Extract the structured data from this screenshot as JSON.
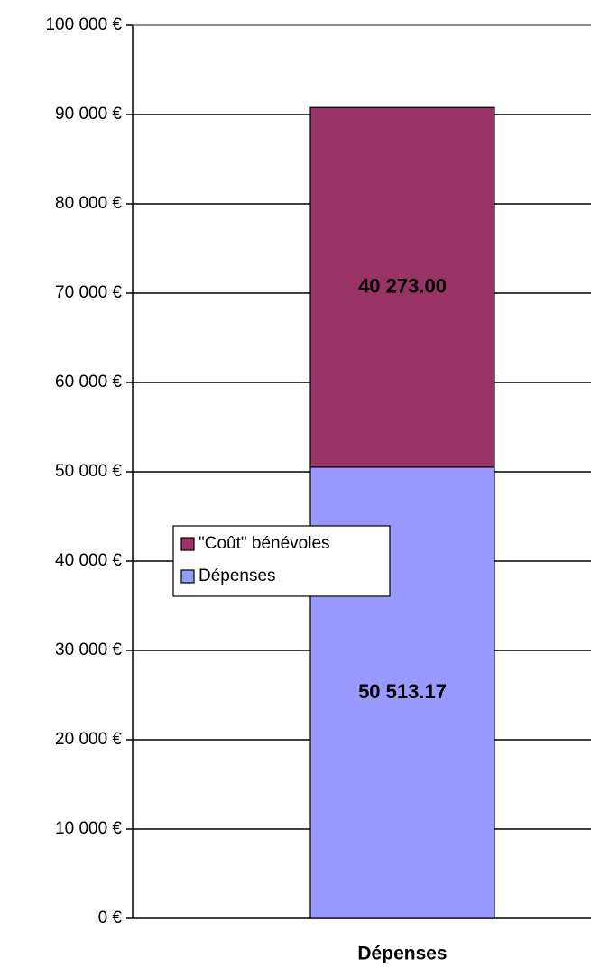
{
  "chart_data": {
    "type": "stacked_bar",
    "categories": [
      "Dépenses"
    ],
    "series": [
      {
        "name": "Dépenses",
        "color": "#9999ff",
        "values": [
          50513.17
        ],
        "value_labels": [
          "50 513.17"
        ]
      },
      {
        "name": "\"Coût\" bénévoles",
        "color": "#993366",
        "values": [
          40273
        ],
        "value_labels": [
          "40 273.00"
        ]
      }
    ],
    "ylim": [
      0,
      100000
    ],
    "yticks": [
      {
        "value": 0,
        "label": "0 €"
      },
      {
        "value": 10000,
        "label": "10 000 €"
      },
      {
        "value": 20000,
        "label": "20 000 €"
      },
      {
        "value": 30000,
        "label": "30 000 €"
      },
      {
        "value": 40000,
        "label": "40 000 €"
      },
      {
        "value": 50000,
        "label": "50 000 €"
      },
      {
        "value": 60000,
        "label": "60 000 €"
      },
      {
        "value": 70000,
        "label": "70 000 €"
      },
      {
        "value": 80000,
        "label": "80 000 €"
      },
      {
        "value": 90000,
        "label": "90 000 €"
      },
      {
        "value": 100000,
        "label": "100 000 €"
      }
    ],
    "grid": true,
    "legend": "left"
  }
}
